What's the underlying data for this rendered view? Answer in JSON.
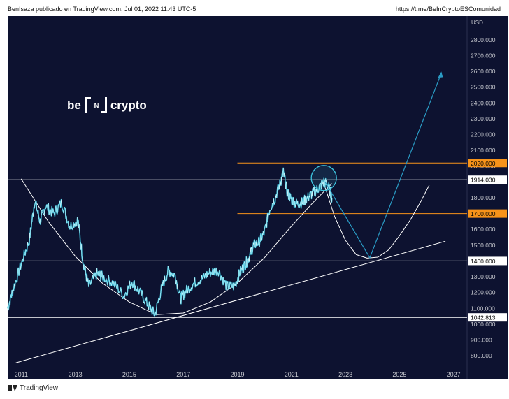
{
  "header": {
    "left_text": "BenIsaza publicado en TradingView.com, Jul 01, 2022 11:43 UTC-5",
    "right_text": "https://t.me/BeInCryptoESComunidad"
  },
  "footer": {
    "brand": "TradingView"
  },
  "watermark": {
    "word1": "be",
    "box_text": "IN",
    "word2": "crypto"
  },
  "colors": {
    "background": "#0d1230",
    "price_line": "#3ec6e0",
    "guide_line": "#ffffff",
    "level_orange": "#f7931a",
    "projection_arrow": "#2a9bc4",
    "axis_text": "#c8cad0"
  },
  "chart_data": {
    "type": "line",
    "title": "",
    "currency": "USD",
    "ylim": [
      650,
      2950
    ],
    "xlim": [
      2010.5,
      2027.5
    ],
    "x_ticks": [
      "2011",
      "2013",
      "2015",
      "2017",
      "2019",
      "2021",
      "2023",
      "2025",
      "2027"
    ],
    "y_ticks": [
      "800.000",
      "900.000",
      "1000.000",
      "1100.000",
      "1200.000",
      "1300.000",
      "1400.000",
      "1500.000",
      "1600.000",
      "1700.000",
      "1800.000",
      "1900.000",
      "2000.000",
      "2100.000",
      "2200.000",
      "2300.000",
      "2400.000",
      "2500.000",
      "2600.000",
      "2700.000",
      "2800.000"
    ],
    "series": [
      {
        "name": "",
        "x": [
          2010.5,
          2010.7,
          2011.0,
          2011.3,
          2011.5,
          2011.7,
          2011.9,
          2012.2,
          2012.5,
          2012.8,
          2013.1,
          2013.3,
          2013.5,
          2013.8,
          2014.0,
          2014.4,
          2014.8,
          2015.1,
          2015.4,
          2015.7,
          2015.95,
          2016.2,
          2016.45,
          2016.7,
          2016.9,
          2017.1,
          2017.4,
          2017.7,
          2018.0,
          2018.3,
          2018.6,
          2018.9,
          2019.1,
          2019.3,
          2019.45,
          2019.6,
          2019.8,
          2020.0,
          2020.2,
          2020.4,
          2020.6,
          2020.7,
          2020.85,
          2021.0,
          2021.2,
          2021.4,
          2021.6,
          2021.8,
          2022.0,
          2022.2,
          2022.35,
          2022.5
        ],
        "values": [
          1100,
          1220,
          1380,
          1530,
          1780,
          1650,
          1750,
          1700,
          1770,
          1620,
          1660,
          1380,
          1240,
          1320,
          1300,
          1260,
          1180,
          1270,
          1200,
          1120,
          1060,
          1230,
          1340,
          1310,
          1160,
          1210,
          1260,
          1290,
          1330,
          1340,
          1240,
          1240,
          1330,
          1380,
          1430,
          1500,
          1520,
          1580,
          1730,
          1800,
          1900,
          1960,
          1830,
          1790,
          1760,
          1770,
          1800,
          1830,
          1860,
          1900,
          1880,
          1800
        ]
      }
    ],
    "horizontal_levels": [
      {
        "label": "2020.000",
        "value": 2020,
        "color": "orange"
      },
      {
        "label": "1914.030",
        "value": 1914.03,
        "color": "white"
      },
      {
        "label": "1700.000",
        "value": 1700,
        "color": "orange"
      },
      {
        "label": "1400.000",
        "value": 1400,
        "color": "white"
      },
      {
        "label": "1042.813",
        "value": 1042.813,
        "color": "white"
      }
    ],
    "trendline": {
      "x": [
        2010.8,
        2026.7
      ],
      "y": [
        755,
        1525
      ]
    },
    "cup_curve": {
      "x": [
        2011.0,
        2012.0,
        2013.0,
        2014.0,
        2015.0,
        2016.0,
        2017.0,
        2018.0,
        2019.0,
        2020.0,
        2021.0,
        2021.8,
        2022.5
      ],
      "y": [
        1920,
        1650,
        1430,
        1260,
        1140,
        1060,
        1070,
        1140,
        1260,
        1420,
        1620,
        1770,
        1890
      ]
    },
    "projected_cup": {
      "x": [
        2022.2,
        2022.6,
        2023.0,
        2023.4,
        2023.8,
        2024.2,
        2024.6,
        2025.0,
        2025.4,
        2025.8,
        2026.1
      ],
      "y": [
        1890,
        1680,
        1530,
        1440,
        1418,
        1424,
        1470,
        1560,
        1660,
        1780,
        1880
      ]
    },
    "projection_path": {
      "x": [
        2022.25,
        2023.9,
        2026.55
      ],
      "y": [
        1900,
        1420,
        2590
      ]
    },
    "highlight_circle": {
      "x": 2022.2,
      "y": 1925
    }
  }
}
